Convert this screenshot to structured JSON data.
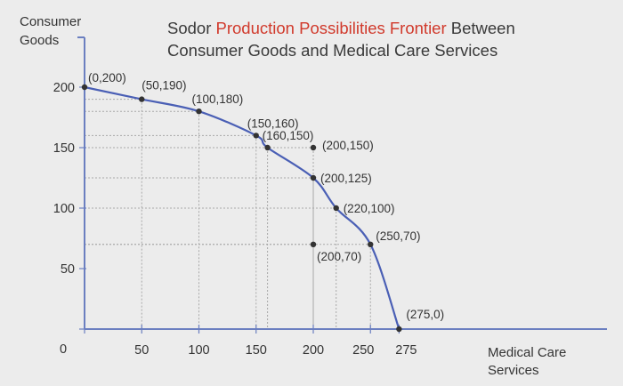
{
  "chart_data": {
    "type": "line",
    "title_parts": [
      {
        "text": "Sodor ",
        "highlight": false
      },
      {
        "text": "Production Possibilities Frontier",
        "highlight": true
      },
      {
        "text": " Between",
        "highlight": false
      }
    ],
    "title_line2": "Consumer Goods and Medical Care Services",
    "ylabel_lines": [
      "Consumer",
      "Goods"
    ],
    "xlabel_lines": [
      "Medical Care",
      "Services"
    ],
    "x_ticks": [
      0,
      50,
      100,
      150,
      200,
      250,
      275
    ],
    "x_tick_labels": [
      "",
      "50",
      "100",
      "150",
      "200",
      "250",
      "275"
    ],
    "y_ticks": [
      0,
      50,
      100,
      150,
      200
    ],
    "y_tick_labels": [
      "0",
      "50",
      "100",
      "150",
      "200"
    ],
    "frontier": [
      {
        "x": 0,
        "y": 200,
        "label": "(0,200)"
      },
      {
        "x": 50,
        "y": 190,
        "label": "(50,190)"
      },
      {
        "x": 100,
        "y": 180,
        "label": "(100,180)"
      },
      {
        "x": 150,
        "y": 160,
        "label": "(150,160)"
      },
      {
        "x": 160,
        "y": 150,
        "label": "(160,150)"
      },
      {
        "x": 200,
        "y": 125,
        "label": "(200,125)"
      },
      {
        "x": 220,
        "y": 100,
        "label": "(220,100)"
      },
      {
        "x": 250,
        "y": 70,
        "label": "(250,70)"
      },
      {
        "x": 275,
        "y": 0,
        "label": "(275,0)"
      }
    ],
    "other_points": [
      {
        "x": 200,
        "y": 150,
        "label": "(200,150)"
      },
      {
        "x": 200,
        "y": 70,
        "label": "(200,70)"
      }
    ],
    "colors": {
      "axis": "#6b7fc0",
      "frontier": "#4a5fb5",
      "title_highlight": "#d13a2c",
      "background": "#ececec"
    }
  }
}
